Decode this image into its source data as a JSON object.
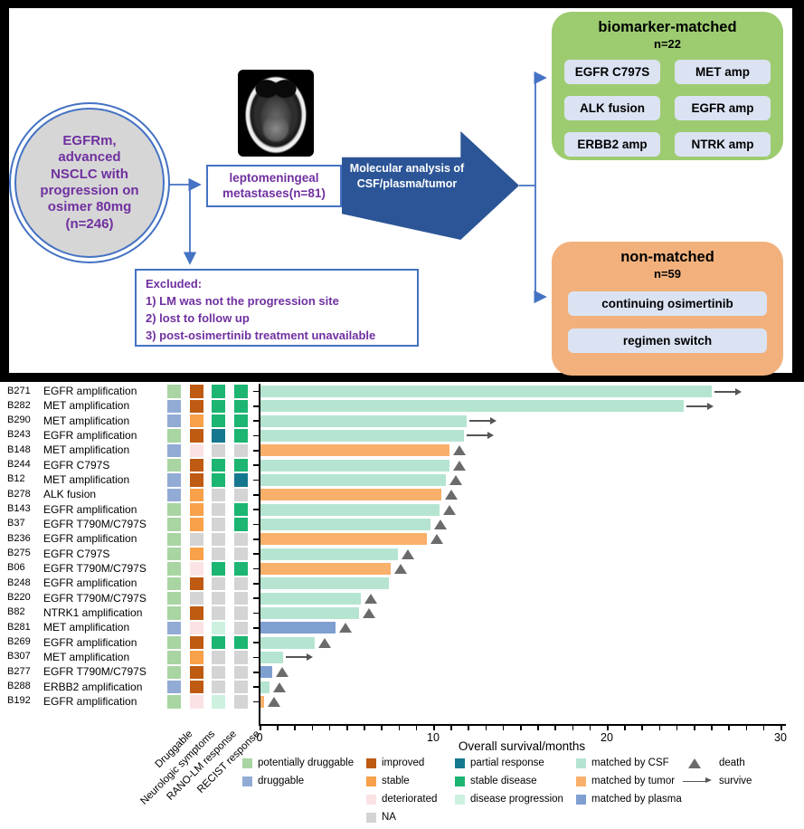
{
  "flowchart": {
    "circle_text": "EGFRm, advanced NSCLC with progression on osimer 80mg (n=246)",
    "mri_label": "axial brain MRI",
    "lepto_box": "leptomeningeal metastases(n=81)",
    "arrow_text": "Molecular analysis of CSF/plasma/tumor",
    "excluded": {
      "lines": [
        "Excluded:",
        "1) LM was not the progression site",
        "2) lost to follow up",
        "3) post-osimertinib treatment unavailable"
      ]
    },
    "matched": {
      "title": "biomarker-matched",
      "n": "n=22",
      "chips": [
        "EGFR C797S",
        "MET amp",
        "ALK fusion",
        "EGFR amp",
        "ERBB2 amp",
        "NTRK amp"
      ]
    },
    "nonmatched": {
      "title": "non-matched",
      "n": "n=59",
      "chips": [
        "continuing osimertinib",
        "regimen switch"
      ]
    }
  },
  "colors": {
    "accent_blue": "#4472c4",
    "arrow_blue": "#2b5596",
    "purple_text": "#7030a0",
    "matched_green": "#9dcc70",
    "nonmatched_orange": "#f2b17c",
    "chip_bg": "#dbe3f3",
    "druggable": {
      "potentially druggable": "#a8d5a2",
      "druggable": "#92abd5"
    },
    "neurologic": {
      "improved": "#bf5a12",
      "stable": "#f9a04a",
      "deteriorated": "#fbe3e5",
      "NA": "#d4d4d4"
    },
    "response": {
      "partial response": "#16788e",
      "stable disease": "#1cb572",
      "disease progression": "#ccf2df",
      "NA": "#d4d4d4"
    },
    "matched_by": {
      "CSF": "#b5e5d1",
      "tumor": "#f9b06a",
      "plasma": "#7f9fd1"
    },
    "marker_gray": "#6b6b6b"
  },
  "chart_data": {
    "type": "bar",
    "orientation": "horizontal-swimmer",
    "xlabel": "Overall survival/months",
    "xlim": [
      0,
      30
    ],
    "x_major_ticks": [
      0,
      10,
      20,
      30
    ],
    "x_minor_tick_interval": 1,
    "grid": false,
    "category_columns": [
      "Druggable",
      "Neurologic symptoms",
      "RANO-LM response",
      "RECIST response"
    ],
    "patients": [
      {
        "id": "B271",
        "mutation": "EGFR amplification",
        "druggable": "potentially druggable",
        "neurologic_symptoms": "improved",
        "rano_lm_response": "stable disease",
        "recist_response": "stable disease",
        "matched_by": "CSF",
        "os_months": 26.0,
        "outcome": "survive"
      },
      {
        "id": "B282",
        "mutation": "MET amplification",
        "druggable": "druggable",
        "neurologic_symptoms": "improved",
        "rano_lm_response": "stable disease",
        "recist_response": "stable disease",
        "matched_by": "CSF",
        "os_months": 24.4,
        "outcome": "survive"
      },
      {
        "id": "B290",
        "mutation": "MET amplification",
        "druggable": "druggable",
        "neurologic_symptoms": "stable",
        "rano_lm_response": "stable disease",
        "recist_response": "stable disease",
        "matched_by": "CSF",
        "os_months": 11.9,
        "outcome": "survive"
      },
      {
        "id": "B243",
        "mutation": "EGFR amplification",
        "druggable": "potentially druggable",
        "neurologic_symptoms": "improved",
        "rano_lm_response": "partial response",
        "recist_response": "stable disease",
        "matched_by": "CSF",
        "os_months": 11.7,
        "outcome": "survive"
      },
      {
        "id": "B148",
        "mutation": "MET amplification",
        "druggable": "druggable",
        "neurologic_symptoms": "deteriorated",
        "rano_lm_response": "NA",
        "recist_response": "NA",
        "matched_by": "tumor",
        "os_months": 10.9,
        "outcome": "death"
      },
      {
        "id": "B244",
        "mutation": "EGFR C797S",
        "druggable": "potentially druggable",
        "neurologic_symptoms": "improved",
        "rano_lm_response": "stable disease",
        "recist_response": "stable disease",
        "matched_by": "CSF",
        "os_months": 10.9,
        "outcome": "death"
      },
      {
        "id": "B12",
        "mutation": "MET amplification",
        "druggable": "druggable",
        "neurologic_symptoms": "improved",
        "rano_lm_response": "stable disease",
        "recist_response": "partial response",
        "matched_by": "CSF",
        "os_months": 10.7,
        "outcome": "death"
      },
      {
        "id": "B278",
        "mutation": "ALK fusion",
        "druggable": "druggable",
        "neurologic_symptoms": "stable",
        "rano_lm_response": "NA",
        "recist_response": "NA",
        "matched_by": "tumor",
        "os_months": 10.4,
        "outcome": "death"
      },
      {
        "id": "B143",
        "mutation": "EGFR amplification",
        "druggable": "potentially druggable",
        "neurologic_symptoms": "stable",
        "rano_lm_response": "NA",
        "recist_response": "stable disease",
        "matched_by": "CSF",
        "os_months": 10.3,
        "outcome": "death"
      },
      {
        "id": "B37",
        "mutation": "EGFR T790M/C797S",
        "druggable": "potentially druggable",
        "neurologic_symptoms": "stable",
        "rano_lm_response": "NA",
        "recist_response": "stable disease",
        "matched_by": "CSF",
        "os_months": 9.8,
        "outcome": "death"
      },
      {
        "id": "B236",
        "mutation": "EGFR amplification",
        "druggable": "potentially druggable",
        "neurologic_symptoms": "NA",
        "rano_lm_response": "NA",
        "recist_response": "NA",
        "matched_by": "tumor",
        "os_months": 9.6,
        "outcome": "death"
      },
      {
        "id": "B275",
        "mutation": "EGFR C797S",
        "druggable": "potentially druggable",
        "neurologic_symptoms": "stable",
        "rano_lm_response": "NA",
        "recist_response": "NA",
        "matched_by": "CSF",
        "os_months": 7.9,
        "outcome": "death"
      },
      {
        "id": "B06",
        "mutation": "EGFR T790M/C797S",
        "druggable": "potentially druggable",
        "neurologic_symptoms": "deteriorated",
        "rano_lm_response": "stable disease",
        "recist_response": "stable disease",
        "matched_by": "tumor",
        "os_months": 7.5,
        "outcome": "death"
      },
      {
        "id": "B248",
        "mutation": "EGFR amplification",
        "druggable": "potentially druggable",
        "neurologic_symptoms": "improved",
        "rano_lm_response": "NA",
        "recist_response": "NA",
        "matched_by": "CSF",
        "os_months": 7.4,
        "outcome": "none"
      },
      {
        "id": "B220",
        "mutation": "EGFR T790M/C797S",
        "druggable": "potentially druggable",
        "neurologic_symptoms": "NA",
        "rano_lm_response": "NA",
        "recist_response": "NA",
        "matched_by": "CSF",
        "os_months": 5.8,
        "outcome": "death"
      },
      {
        "id": "B82",
        "mutation": "NTRK1 amplification",
        "druggable": "potentially druggable",
        "neurologic_symptoms": "improved",
        "rano_lm_response": "NA",
        "recist_response": "NA",
        "matched_by": "CSF",
        "os_months": 5.7,
        "outcome": "death"
      },
      {
        "id": "B281",
        "mutation": "MET amplification",
        "druggable": "druggable",
        "neurologic_symptoms": "deteriorated",
        "rano_lm_response": "disease progression",
        "recist_response": "NA",
        "matched_by": "plasma",
        "os_months": 4.3,
        "outcome": "death"
      },
      {
        "id": "B269",
        "mutation": "EGFR amplification",
        "druggable": "potentially druggable",
        "neurologic_symptoms": "improved",
        "rano_lm_response": "stable disease",
        "recist_response": "stable disease",
        "matched_by": "CSF",
        "os_months": 3.1,
        "outcome": "death"
      },
      {
        "id": "B307",
        "mutation": "MET amplification",
        "druggable": "potentially druggable",
        "neurologic_symptoms": "stable",
        "rano_lm_response": "NA",
        "recist_response": "NA",
        "matched_by": "CSF",
        "os_months": 1.3,
        "outcome": "survive"
      },
      {
        "id": "B277",
        "mutation": "EGFR T790M/C797S",
        "druggable": "potentially druggable",
        "neurologic_symptoms": "improved",
        "rano_lm_response": "NA",
        "recist_response": "NA",
        "matched_by": "plasma",
        "os_months": 0.7,
        "outcome": "death"
      },
      {
        "id": "B288",
        "mutation": "ERBB2 amplification",
        "druggable": "druggable",
        "neurologic_symptoms": "improved",
        "rano_lm_response": "NA",
        "recist_response": "NA",
        "matched_by": "CSF",
        "os_months": 0.5,
        "outcome": "death"
      },
      {
        "id": "B192",
        "mutation": "EGFR amplification",
        "druggable": "potentially druggable",
        "neurologic_symptoms": "deteriorated",
        "rano_lm_response": "disease progression",
        "recist_response": "NA",
        "matched_by": "tumor",
        "os_months": 0.2,
        "outcome": "death"
      }
    ],
    "legend": {
      "columns": [
        {
          "items": [
            {
              "label": "potentially druggable",
              "color": "#a8d5a2"
            },
            {
              "label": "druggable",
              "color": "#92abd5"
            }
          ]
        },
        {
          "items": [
            {
              "label": "improved",
              "color": "#bf5a12"
            },
            {
              "label": "stable",
              "color": "#f9a04a"
            },
            {
              "label": "deteriorated",
              "color": "#fbe3e5"
            },
            {
              "label": "NA",
              "color": "#d4d4d4"
            }
          ]
        },
        {
          "items": [
            {
              "label": "partial response",
              "color": "#16788e"
            },
            {
              "label": "stable disease",
              "color": "#1cb572"
            },
            {
              "label": "disease progression",
              "color": "#ccf2df"
            }
          ]
        },
        {
          "items": [
            {
              "label": "matched by CSF",
              "color": "#b5e5d1"
            },
            {
              "label": "matched by tumor",
              "color": "#f9b06a"
            },
            {
              "label": "matched by plasma",
              "color": "#7f9fd1"
            }
          ]
        },
        {
          "items": [
            {
              "label": "death",
              "symbol": "triangle"
            },
            {
              "label": "survive",
              "symbol": "arrow"
            }
          ]
        }
      ],
      "position": "bottom"
    }
  }
}
